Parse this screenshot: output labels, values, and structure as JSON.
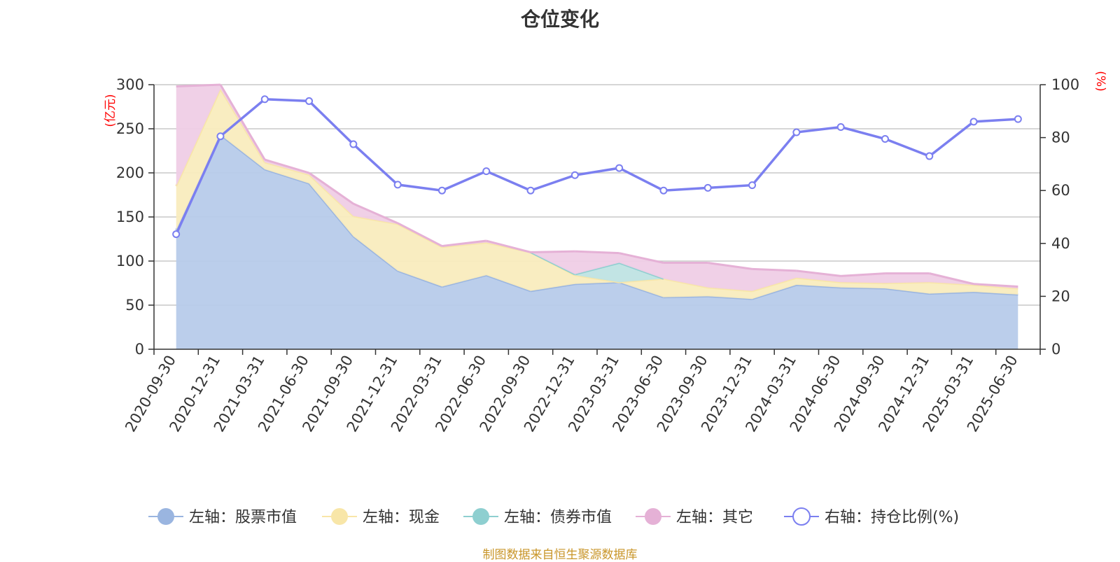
{
  "title": "仓位变化",
  "footer": "制图数据来自恒生聚源数据库",
  "chart_data": {
    "type": "area",
    "title": "仓位变化",
    "x": [
      "2020-09-30",
      "2020-12-31",
      "2021-03-31",
      "2021-06-30",
      "2021-09-30",
      "2021-12-31",
      "2022-03-31",
      "2022-06-30",
      "2022-09-30",
      "2022-12-31",
      "2023-03-31",
      "2023-06-30",
      "2023-09-30",
      "2023-12-31",
      "2024-03-31",
      "2024-06-30",
      "2024-09-30",
      "2024-12-31",
      "2025-03-31",
      "2025-06-30"
    ],
    "left_axis": {
      "unit": "(亿元)",
      "ylim": [
        0,
        300
      ],
      "ticks": [
        0,
        50,
        100,
        150,
        200,
        250,
        300
      ]
    },
    "right_axis": {
      "unit": "(%)",
      "ylim": [
        0,
        100
      ],
      "ticks": [
        0,
        20,
        40,
        60,
        80,
        100
      ]
    },
    "stacked": true,
    "grid": true,
    "legend_position": "bottom",
    "series": [
      {
        "name": "左轴：股票市值",
        "axis": "left",
        "kind": "area",
        "color": "#9ab5e0",
        "fill": "#b7cbea",
        "values": [
          135,
          243,
          204,
          188,
          128,
          89,
          71,
          84,
          66,
          74,
          76,
          59,
          60,
          57,
          73,
          70,
          69,
          63,
          65,
          62
        ]
      },
      {
        "name": "左轴：现金",
        "axis": "left",
        "kind": "area",
        "color": "#f8e6a8",
        "fill": "#f9ecbe",
        "values": [
          50,
          52,
          8,
          10,
          23,
          53,
          45,
          37,
          44,
          10,
          0,
          21,
          10,
          9,
          8,
          6,
          6,
          13,
          8,
          7
        ]
      },
      {
        "name": "左轴：债券市值",
        "axis": "left",
        "kind": "area",
        "color": "#8ecfd0",
        "fill": "#bfe3e3",
        "values": [
          0,
          0,
          0,
          0,
          0,
          0,
          0,
          0,
          0,
          1,
          22,
          0,
          0,
          0,
          0,
          0,
          0,
          0,
          0,
          0
        ]
      },
      {
        "name": "左轴：其它",
        "axis": "left",
        "kind": "area",
        "color": "#e5b1d6",
        "fill": "#efcde6",
        "values": [
          113,
          5,
          3,
          2,
          14,
          1,
          1,
          2,
          0,
          26,
          11,
          18,
          28,
          25,
          8,
          7,
          11,
          10,
          1,
          2
        ]
      },
      {
        "name": "右轴：持仓比例(%)",
        "axis": "right",
        "kind": "line",
        "color": "#7b7ff0",
        "values": [
          43.5,
          80.5,
          94.5,
          93.8,
          77.5,
          62.2,
          60.0,
          67.3,
          60.0,
          65.8,
          68.5,
          60.0,
          61.0,
          62.0,
          82.0,
          84.0,
          79.5,
          73.0,
          86.0,
          87.0
        ]
      }
    ]
  }
}
